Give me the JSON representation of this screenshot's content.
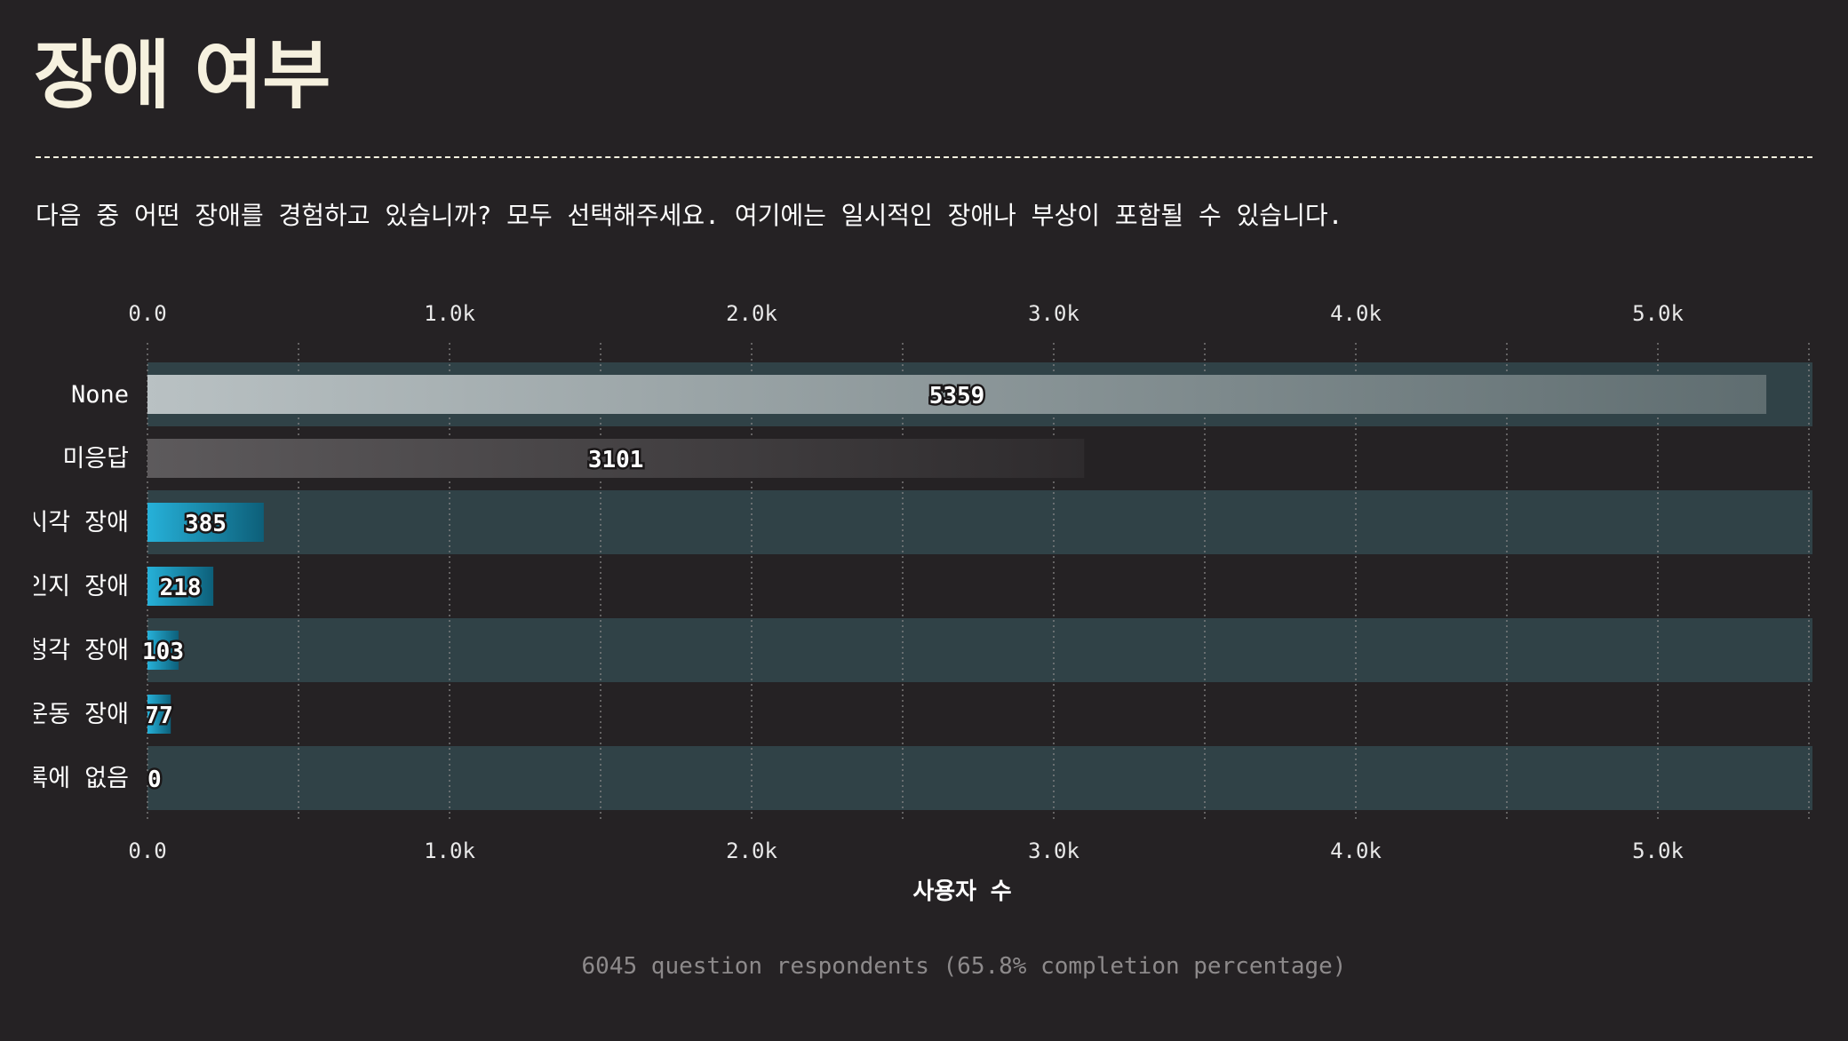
{
  "header": {
    "title": "장애 여부",
    "question": "다음 중 어떤 장애를 경험하고 있습니까? 모두 선택해주세요. 여기에는 일시적인 장애나 부상이 포함될 수 있습니다."
  },
  "footer": {
    "note": "6045 question respondents (65.8% completion percentage)"
  },
  "colors": {
    "background": "#252224",
    "band": "#304247",
    "title": "#f6f1df",
    "none_bar": [
      "#b9c1c3",
      "#5f6d70"
    ],
    "unanswered_bar": [
      "#5d5a5c",
      "#2e2b2d"
    ],
    "disability_bar": [
      "#26b1d9",
      "#0d5f79"
    ]
  },
  "chart_data": {
    "type": "bar",
    "orientation": "horizontal",
    "title": "장애 여부",
    "xlabel": "사용자 수",
    "ylabel": "",
    "xlim": [
      0,
      5520
    ],
    "x_ticks": [
      0,
      1000,
      2000,
      3000,
      4000,
      5000
    ],
    "x_tick_labels": [
      "0.0",
      "1.0k",
      "2.0k",
      "3.0k",
      "4.0k",
      "5.0k"
    ],
    "ticks_top_and_bottom": true,
    "grid": "vertical dotted at major and half ticks",
    "categories": [
      "None",
      "미응답",
      "시각 장애",
      "인지 장애",
      "청각 장애",
      "운동 장애",
      "목록에 없음"
    ],
    "values": [
      5359,
      3101,
      385,
      218,
      103,
      77,
      0
    ],
    "data_labels": [
      "5359",
      "3101",
      "385",
      "218",
      "103",
      "77",
      "0"
    ]
  }
}
